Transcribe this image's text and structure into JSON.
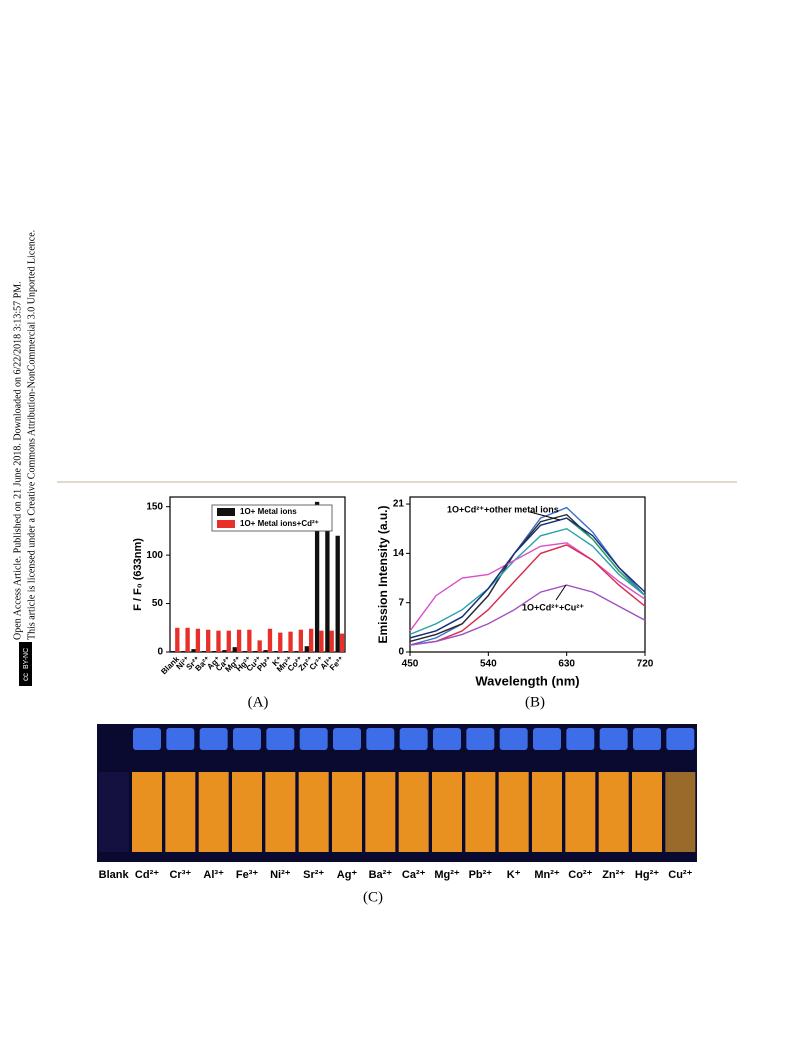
{
  "sidebar": {
    "line1": "Open Access Article. Published on 21 June 2018. Downloaded on 6/22/2018 3:13:57 PM.",
    "line2": "This article is licensed under a Creative Commons Attribution-NonCommercial 3.0 Unported Licence.",
    "badge_cc": "cc",
    "badge_text": "BY-NC"
  },
  "chart_data": [
    {
      "type": "bar",
      "ylabel": "F / F₀ (633nm)",
      "panel": "(A)",
      "categories": [
        "Blank",
        "Ni²⁺",
        "Sr²⁺",
        "Ba²⁺",
        "Ag⁺",
        "Ca²⁺",
        "Mg²⁺",
        "Hg²⁺",
        "Cu²⁺",
        "Pb²⁺",
        "K⁺",
        "Mn²⁺",
        "Co²⁺",
        "Zn²⁺",
        "Cr³⁺",
        "Al³⁺",
        "Fe³⁺"
      ],
      "series": [
        {
          "name": "1O+ Metal ions",
          "color": "#111111",
          "values": [
            1,
            1,
            3,
            1,
            1,
            2,
            5,
            1,
            1,
            2,
            1,
            1,
            1,
            6,
            155,
            137,
            120
          ]
        },
        {
          "name": "1O+ Metal ions+Cd²⁺",
          "color": "#e8302a",
          "values": [
            25,
            25,
            24,
            23,
            22,
            22,
            23,
            23,
            12,
            24,
            20,
            21,
            23,
            24,
            22,
            22,
            19
          ]
        }
      ],
      "ylim": [
        0,
        160
      ],
      "yticks": [
        0,
        50,
        100,
        150
      ],
      "legend": "upper right"
    },
    {
      "type": "line",
      "xlabel": "Wavelength (nm)",
      "ylabel": "Emission Intensity (a.u.)",
      "panel": "(B)",
      "annotations": [
        "1O+Cd²⁺+other metal ions",
        "1O+Cd²⁺+Cu²⁺"
      ],
      "x": [
        450,
        480,
        510,
        540,
        570,
        600,
        630,
        660,
        690,
        720
      ],
      "series": [
        {
          "color": "#3b6fd0",
          "values": [
            1,
            2,
            4,
            8,
            14,
            19,
            20.5,
            17,
            12,
            8
          ]
        },
        {
          "color": "#2a2a2a",
          "values": [
            1.5,
            2.5,
            4,
            8,
            14,
            18.5,
            19.5,
            16,
            11.5,
            8
          ]
        },
        {
          "color": "#2aa86a",
          "values": [
            2,
            3,
            5,
            9,
            14,
            18,
            19,
            16,
            11.5,
            8
          ]
        },
        {
          "color": "#2aa0a8",
          "values": [
            2.5,
            4,
            6,
            9,
            13,
            16.5,
            17.5,
            15,
            11,
            8
          ]
        },
        {
          "color": "#d94fc8",
          "values": [
            3,
            8,
            10.5,
            11,
            13,
            15,
            15.5,
            13,
            10,
            7.5
          ]
        },
        {
          "color": "#d92a4a",
          "values": [
            1,
            1.5,
            3,
            6,
            10,
            14,
            15.2,
            13,
            9.5,
            6.5
          ]
        },
        {
          "color": "#a050c0",
          "values": [
            1,
            1.5,
            2.5,
            4,
            6,
            8.5,
            9.5,
            8.5,
            6.5,
            4.5
          ]
        },
        {
          "color": "#1e2a80",
          "values": [
            2,
            3,
            5,
            9,
            14,
            18,
            19,
            16.5,
            12,
            8.5
          ]
        }
      ],
      "xlim": [
        450,
        720
      ],
      "xticks": [
        450,
        540,
        630,
        720
      ],
      "ylim": [
        0,
        22
      ],
      "yticks": [
        0,
        7,
        14,
        21
      ]
    }
  ],
  "photo": {
    "panel": "(C)",
    "labels": [
      "Blank",
      "Cd²⁺",
      "Cr³⁺",
      "Al³⁺",
      "Fe³⁺",
      "Ni²⁺",
      "Sr²⁺",
      "Ag⁺",
      "Ba²⁺",
      "Ca²⁺",
      "Mg²⁺",
      "Pb²⁺",
      "K⁺",
      "Mn²⁺",
      "Co²⁺",
      "Zn²⁺",
      "Hg²⁺",
      "Cu²⁺"
    ]
  }
}
